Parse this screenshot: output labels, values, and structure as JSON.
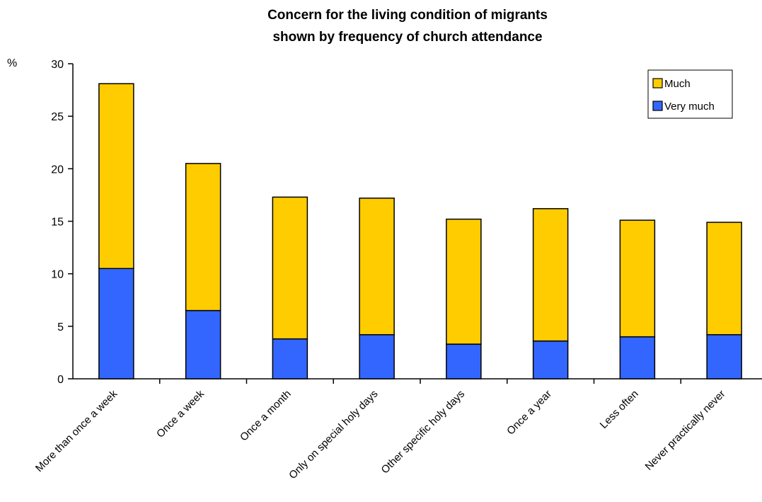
{
  "chart_data": {
    "type": "bar",
    "stacked": true,
    "title": "Concern for the living condition of migrants",
    "subtitle": "shown by frequency of church attendance",
    "ylabel": "%",
    "xlabel": "",
    "ylim": [
      0,
      30
    ],
    "yticks": [
      "0",
      "5",
      "10",
      "15",
      "20",
      "25",
      "30"
    ],
    "grid": false,
    "legend_position": "top-right",
    "categories": [
      "More than once a week",
      "Once a week",
      "Once a month",
      "Only on special holy days",
      "Other specific holy days",
      "Once a year",
      "Less often",
      "Never practically never"
    ],
    "series": [
      {
        "name": "Very much",
        "color": "#3366ff",
        "values": [
          10.5,
          6.5,
          3.8,
          4.2,
          3.3,
          3.6,
          4.0,
          4.2
        ]
      },
      {
        "name": "Much",
        "color": "#ffcc00",
        "values": [
          17.6,
          14.0,
          13.5,
          13.0,
          11.9,
          12.6,
          11.1,
          10.7
        ]
      }
    ],
    "legend_order": [
      "Much",
      "Very much"
    ]
  }
}
